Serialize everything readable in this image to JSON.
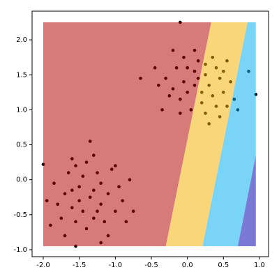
{
  "chart_data": {
    "type": "scatter",
    "xlim": [
      -2.155,
      1.126
    ],
    "ylim": [
      -1.1,
      2.41
    ],
    "xticks": [
      {
        "value": -2.0,
        "label": "-2.0"
      },
      {
        "value": -1.5,
        "label": "-1.5"
      },
      {
        "value": -1.0,
        "label": "-1.0"
      },
      -0.5,
      {
        "value": 0.0,
        "label": "0.0"
      },
      0.5,
      {
        "value": 1.0,
        "label": "1.0"
      }
    ],
    "yticks": [
      {
        "value": -1.0,
        "label": "-1.0"
      },
      -0.5,
      {
        "value": 0.0,
        "label": "0.0"
      },
      0.5,
      {
        "value": 1.0,
        "label": "1.0"
      },
      1.5,
      {
        "value": 2.0,
        "label": "2.0"
      }
    ],
    "region_opacity": 0.52,
    "regions": [
      {
        "color": "#b00000",
        "x": [
          -2,
          -2,
          0.33,
          -0.3
        ],
        "y": [
          -0.95,
          2.25,
          2.25,
          -0.95
        ]
      },
      {
        "color": "#f5b000",
        "x": [
          -0.3,
          0.33,
          0.835,
          0.21
        ],
        "y": [
          -0.95,
          2.25,
          2.25,
          -0.95
        ]
      },
      {
        "color": "#00adf0",
        "x": [
          0.21,
          0.835,
          0.95,
          0.95,
          0.7
        ],
        "y": [
          -0.95,
          2.25,
          2.25,
          0.35,
          -0.95
        ]
      },
      {
        "color": "#0000b0",
        "x": [
          0.7,
          0.95,
          0.95
        ],
        "y": [
          -0.95,
          0.35,
          -0.95
        ]
      }
    ],
    "series": [
      {
        "color": "#000000",
        "x": [
          -1.35,
          -1.5,
          -1.2,
          -1.6,
          -1.1,
          -1.45,
          -1.3,
          -1.7,
          -1.0,
          -1.25,
          -1.55,
          -1.15,
          -1.8,
          -0.95,
          -1.4,
          -1.65,
          -1.2,
          -1.5,
          -1.05,
          -1.75,
          -1.3,
          -0.9,
          -1.4,
          -1.6,
          -1.85,
          -1.1,
          -0.85,
          -1.35,
          -1.9,
          -1.25,
          -1.45,
          -1.0,
          -1.55,
          -0.75,
          -1.7,
          -1.2,
          -0.8,
          -1.95,
          -1.6,
          -1.3,
          0.1,
          0.25,
          -0.05,
          0.35,
          0.0,
          0.2,
          -0.2,
          0.45,
          0.15,
          -0.1,
          0.3,
          0.05,
          -0.3,
          0.5,
          0.4,
          -0.15,
          0.25,
          0.55,
          0.1,
          -0.25,
          0.35,
          -0.4,
          0.6,
          0.2,
          -0.05,
          0.45,
          0.0,
          0.3,
          -0.35,
          0.55,
          0.15,
          -0.2,
          0.65,
          0.4,
          -0.45,
          0.7,
          0.25,
          -0.1,
          0.5,
          0.1,
          -0.1,
          -2.0,
          -1.55,
          0.95,
          0.85,
          -0.65
        ],
        "values": [
          -0.25,
          -0.1,
          -0.35,
          -0.4,
          -0.2,
          0.05,
          -0.55,
          -0.2,
          -0.45,
          0.1,
          -0.6,
          -0.6,
          -0.35,
          -0.1,
          0.25,
          0.1,
          -0.05,
          -0.3,
          0.15,
          -0.55,
          0.35,
          -0.3,
          -0.7,
          -0.15,
          -0.05,
          -0.8,
          -0.6,
          0.55,
          -0.65,
          -0.45,
          -0.45,
          0.2,
          0.2,
          -0.45,
          -0.8,
          -0.9,
          0.0,
          -0.3,
          0.3,
          -0.15,
          1.35,
          1.5,
          1.4,
          1.2,
          1.6,
          1.1,
          1.3,
          1.45,
          1.7,
          1.15,
          1.35,
          1.0,
          1.45,
          1.25,
          1.6,
          1.6,
          0.95,
          1.05,
          1.85,
          1.2,
          1.75,
          1.35,
          1.4,
          1.25,
          1.75,
          0.9,
          1.25,
          0.8,
          1.0,
          1.7,
          1.45,
          1.85,
          1.15,
          1.05,
          1.6,
          1.0,
          1.65,
          0.95,
          1.55,
          1.55,
          2.25,
          0.22,
          -0.95,
          1.22,
          1.55,
          1.45
        ]
      }
    ]
  }
}
